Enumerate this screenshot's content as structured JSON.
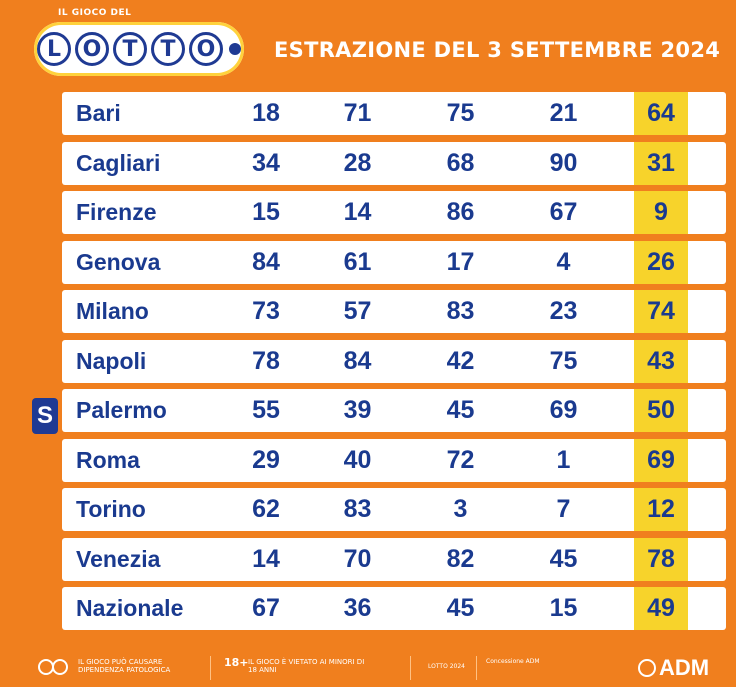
{
  "header": {
    "logo_top": "IL GIOCO DEL",
    "logo_letters": [
      "L",
      "O",
      "T",
      "T",
      "O"
    ],
    "title": "ESTRAZIONE DEL 3 SETTEMBRE 2024"
  },
  "rows": [
    {
      "city": "Bari",
      "nums": [
        "18",
        "71",
        "75",
        "21",
        "64"
      ]
    },
    {
      "city": "Cagliari",
      "nums": [
        "34",
        "28",
        "68",
        "90",
        "31"
      ]
    },
    {
      "city": "Firenze",
      "nums": [
        "15",
        "14",
        "86",
        "67",
        "9"
      ]
    },
    {
      "city": "Genova",
      "nums": [
        "84",
        "61",
        "17",
        "4",
        "26"
      ]
    },
    {
      "city": "Milano",
      "nums": [
        "73",
        "57",
        "83",
        "23",
        "74"
      ]
    },
    {
      "city": "Napoli",
      "nums": [
        "78",
        "84",
        "42",
        "75",
        "43"
      ]
    },
    {
      "city": "Palermo",
      "nums": [
        "55",
        "39",
        "45",
        "69",
        "50"
      ]
    },
    {
      "city": "Roma",
      "nums": [
        "29",
        "40",
        "72",
        "1",
        "69"
      ]
    },
    {
      "city": "Torino",
      "nums": [
        "62",
        "83",
        "3",
        "7",
        "12"
      ]
    },
    {
      "city": "Venezia",
      "nums": [
        "14",
        "70",
        "82",
        "45",
        "78"
      ]
    },
    {
      "city": "Nazionale",
      "nums": [
        "67",
        "36",
        "45",
        "15",
        "49"
      ]
    }
  ],
  "badge": "S",
  "footer": {
    "warning": "IL GIOCO PUÒ CAUSARE DIPENDENZA PATOLOGICA",
    "age": "18+",
    "age_text": "IL GIOCO È VIETATO AI MINORI DI 18 ANNI",
    "small": "LOTTO 2024",
    "concession": "Concessione ADM",
    "brand": "ADM"
  },
  "colors": {
    "background": "#f07f1e",
    "text": "#1a3a8f",
    "highlight": "#f7d32b"
  }
}
